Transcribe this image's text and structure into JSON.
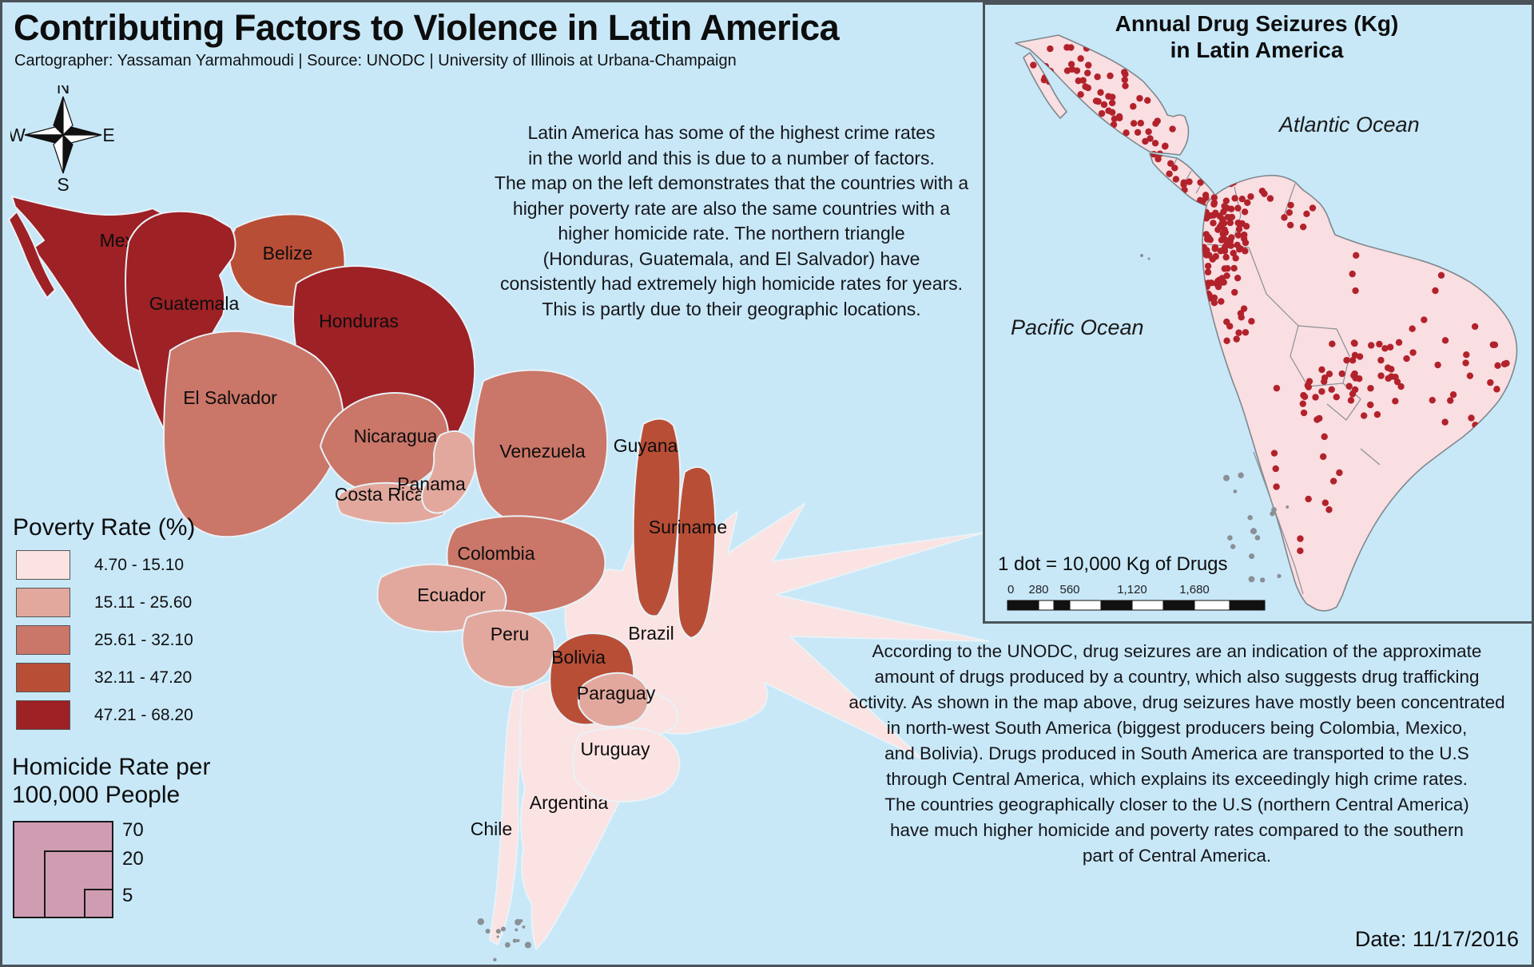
{
  "page": {
    "title": "Contributing Factors to Violence in Latin America",
    "subtitle": "Cartographer: Yassaman Yarmahmoudi | Source: UNODC | University of Illinois at Urbana-Champaign",
    "date": "Date: 11/17/2016",
    "background": "#c8e8f8",
    "frame_color": "#4b5358"
  },
  "compass": {
    "north": "N",
    "south": "S",
    "east": "E",
    "west": "W"
  },
  "intro": {
    "lines": [
      "Latin America has some of the highest crime rates",
      "in the world and this is due to a number of factors.",
      "The map on the left demonstrates that the countries with a",
      "higher poverty rate are also the same countries with a",
      "higher homicide rate. The northern triangle",
      "(Honduras, Guatemala, and El Salvador) have",
      "consistently had extremely high homicide rates for years.",
      "This is partly due to their geographic locations."
    ]
  },
  "drug_text": {
    "lines": [
      "According to the UNODC, drug seizures are an indication of the approximate",
      "amount of drugs produced by a country, which also suggests drug trafficking",
      "activity. As shown in the map above, drug seizures have mostly been concentrated",
      "in north-west South America (biggest producers being Colombia, Mexico,",
      "and Bolivia). Drugs produced in South America are transported to the U.S",
      "through Central America, which explains its exceedingly high crime rates.",
      "The countries geographically closer to the U.S (northern Central America)",
      "have much higher homicide and poverty rates compared to the southern",
      "part of Central America."
    ]
  },
  "poverty_legend": {
    "title": "Poverty Rate (%)",
    "classes": [
      {
        "label": "4.70 - 15.10",
        "color": "#fae3e2"
      },
      {
        "label": "15.11 - 25.60",
        "color": "#e2a89d"
      },
      {
        "label": "25.61 - 32.10",
        "color": "#ca7668"
      },
      {
        "label": "32.11 - 47.20",
        "color": "#b94e37"
      },
      {
        "label": "47.21 - 68.20",
        "color": "#9d2125"
      }
    ]
  },
  "homicide_legend": {
    "title_lines": [
      "Homicide Rate per",
      "100,000 People"
    ],
    "values": [
      "70",
      "20",
      "5"
    ],
    "fill": "#d09cb2"
  },
  "main_map": {
    "countries": [
      {
        "id": "belize",
        "name": "Belize",
        "cls": 3
      },
      {
        "id": "mexico",
        "name": "Mexico",
        "cls": 4
      },
      {
        "id": "guatemala",
        "name": "Guatemala",
        "cls": 4
      },
      {
        "id": "honduras",
        "name": "Honduras",
        "cls": 4
      },
      {
        "id": "el_salvador",
        "name": "El Salvador",
        "cls": 2
      },
      {
        "id": "nicaragua",
        "name": "Nicaragua",
        "cls": 2
      },
      {
        "id": "costa_rica",
        "name": "Costa Rica",
        "cls": 1
      },
      {
        "id": "panama",
        "name": "Panama",
        "cls": 1
      },
      {
        "id": "venezuela",
        "name": "Venezuela",
        "cls": 2
      },
      {
        "id": "brazil",
        "name": "Brazil",
        "cls": 0
      },
      {
        "id": "guyana",
        "name": "Guyana",
        "cls": 3
      },
      {
        "id": "suriname",
        "name": "Suriname",
        "cls": 3
      },
      {
        "id": "colombia",
        "name": "Colombia",
        "cls": 2
      },
      {
        "id": "ecuador",
        "name": "Ecuador",
        "cls": 1
      },
      {
        "id": "peru",
        "name": "Peru",
        "cls": 1
      },
      {
        "id": "argentina",
        "name": "Argentina",
        "cls": 0
      },
      {
        "id": "bolivia",
        "name": "Bolivia",
        "cls": 3
      },
      {
        "id": "paraguay",
        "name": "Paraguay",
        "cls": 1
      },
      {
        "id": "uruguay",
        "name": "Uruguay",
        "cls": 0
      },
      {
        "id": "chile",
        "name": "Chile",
        "cls": 0
      }
    ]
  },
  "inset_map": {
    "title_lines": [
      "Annual Drug Seizures (Kg)",
      "in Latin America"
    ],
    "atlantic": "Atlantic Ocean",
    "pacific": "Pacific Ocean",
    "dot_note": "1 dot = 10,000 Kg of Drugs",
    "scale_ticks": [
      "0",
      "280",
      "560",
      "1,120",
      "1,680"
    ],
    "land_color": "#f9dee2",
    "dot_color": "#b2222b",
    "dot_clusters": [
      [
        60,
        52,
        80,
        50,
        16
      ],
      [
        100,
        80,
        80,
        50,
        22
      ],
      [
        140,
        110,
        65,
        55,
        16
      ],
      [
        200,
        140,
        40,
        42,
        8
      ],
      [
        202,
        186,
        50,
        26,
        8
      ],
      [
        232,
        214,
        42,
        26,
        6
      ],
      [
        268,
        238,
        60,
        80,
        72
      ],
      [
        262,
        300,
        55,
        55,
        22
      ],
      [
        305,
        218,
        62,
        36,
        9
      ],
      [
        370,
        240,
        45,
        42,
        7
      ],
      [
        272,
        358,
        62,
        66,
        20
      ],
      [
        398,
        420,
        128,
        100,
        46
      ],
      [
        430,
        300,
        215,
        155,
        20
      ],
      [
        528,
        430,
        125,
        110,
        13
      ],
      [
        358,
        462,
        115,
        190,
        15
      ],
      [
        362,
        655,
        55,
        70,
        3
      ]
    ]
  }
}
